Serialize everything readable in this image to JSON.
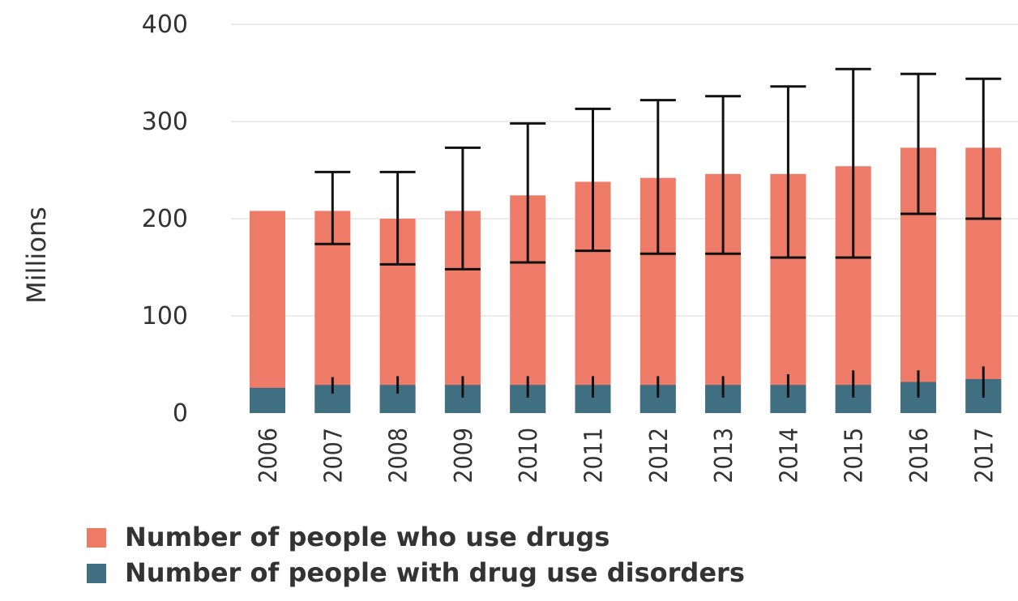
{
  "chart_data": {
    "type": "bar",
    "stacked": false,
    "title": "",
    "xlabel": "",
    "ylabel": "Millions",
    "ylim": [
      0,
      400
    ],
    "yticks": [
      0,
      100,
      200,
      300,
      400
    ],
    "grid": true,
    "categories": [
      "2006",
      "2007",
      "2008",
      "2009",
      "2010",
      "2011",
      "2012",
      "2013",
      "2014",
      "2015",
      "2016",
      "2017"
    ],
    "series": [
      {
        "name": "Number of people who use drugs",
        "color": "#ee7b68",
        "values": [
          208,
          208,
          200,
          208,
          224,
          238,
          242,
          246,
          246,
          254,
          273,
          273
        ],
        "error_low": [
          null,
          174,
          153,
          148,
          155,
          167,
          164,
          164,
          160,
          160,
          205,
          200
        ],
        "error_high": [
          null,
          248,
          248,
          273,
          298,
          313,
          322,
          326,
          336,
          354,
          349,
          344
        ]
      },
      {
        "name": "Number of people with drug use disorders",
        "color": "#3f6f80",
        "values": [
          26,
          29,
          29,
          29,
          29,
          29,
          29,
          29,
          29,
          29,
          32,
          35
        ],
        "error_low": [
          null,
          20,
          20,
          16,
          16,
          16,
          16,
          16,
          16,
          16,
          16,
          16
        ],
        "error_high": [
          null,
          37,
          38,
          38,
          38,
          38,
          38,
          38,
          40,
          44,
          44,
          48
        ]
      }
    ],
    "legend_position": "bottom"
  }
}
